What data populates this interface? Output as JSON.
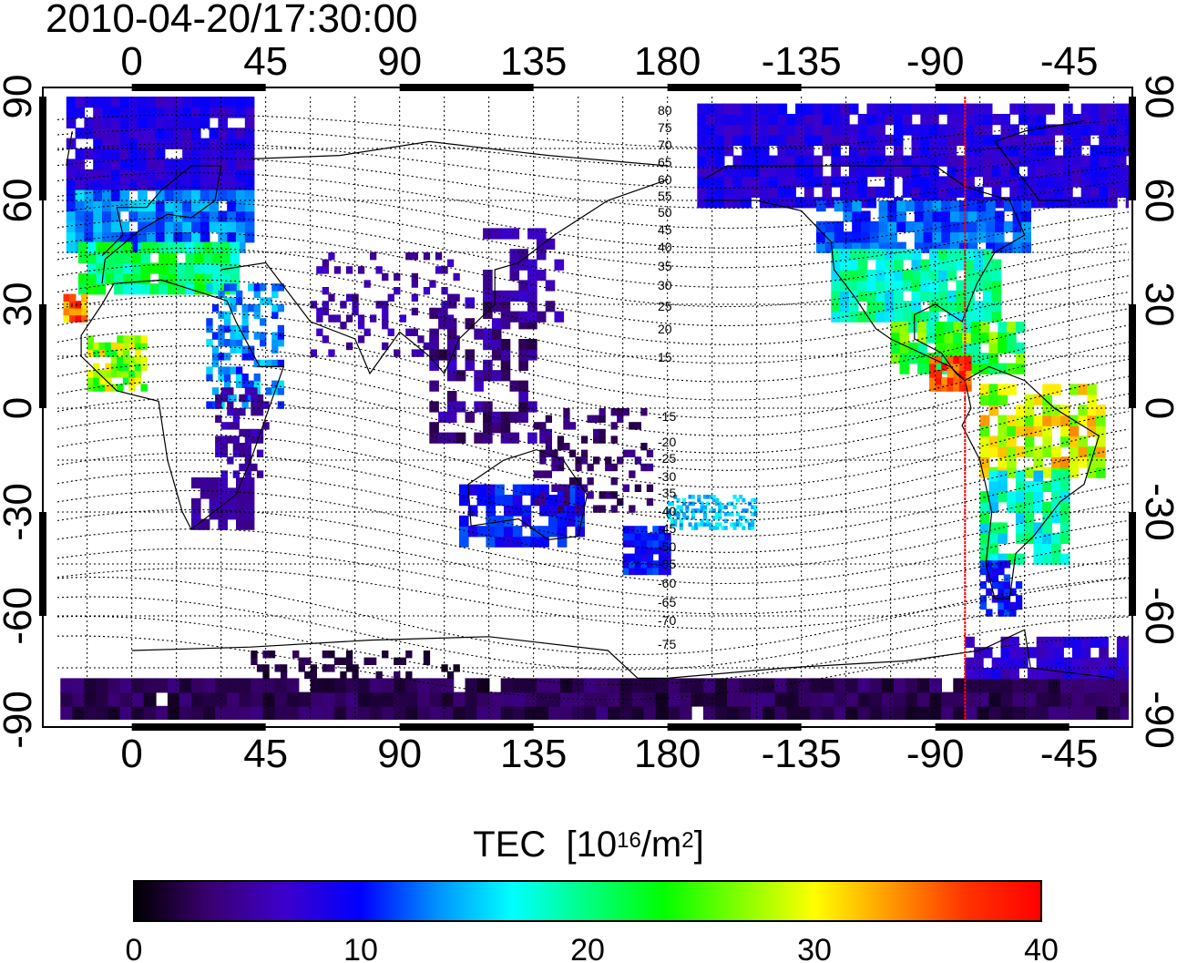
{
  "title": "2010-04-20/17:30:00",
  "map": {
    "top_tick_labels": [
      "0",
      "45",
      "90",
      "135",
      "180",
      "-135",
      "-90",
      "-45"
    ],
    "bottom_tick_labels": [
      "0",
      "45",
      "90",
      "135",
      "180",
      "-135",
      "-90",
      "-45"
    ],
    "left_tick_labels": [
      "90",
      "60",
      "30",
      "0",
      "-30",
      "-60",
      "-90"
    ],
    "right_tick_labels": [
      "90",
      "60",
      "30",
      "0",
      "-30",
      "-60",
      "-90"
    ],
    "contour_labels": [
      "80",
      "75",
      "70",
      "65",
      "60",
      "55",
      "50",
      "45",
      "40",
      "35",
      "30",
      "25",
      "20",
      "15",
      "-15",
      "-20",
      "-25",
      "-30",
      "-35",
      "-40",
      "-45",
      "-50",
      "-55",
      "-60",
      "-65",
      "-70",
      "-75"
    ],
    "marker_longitude": -80,
    "marker_color": "#ff0000",
    "land_outline_color": "#000000"
  },
  "colorbar": {
    "title": "TEC",
    "unit_prefix": "[10",
    "unit_exp": "16",
    "unit_mid": "/m",
    "unit_exp2": "2",
    "unit_suffix": "]",
    "tick_labels": [
      "0",
      "10",
      "20",
      "30",
      "40"
    ],
    "min": 0,
    "max": 40,
    "colors": [
      "#000000",
      "#3a0070",
      "#3c00cc",
      "#0000ff",
      "#0090ff",
      "#00ffff",
      "#00ff80",
      "#00ff00",
      "#80ff00",
      "#ffff00",
      "#ff9900",
      "#ff3300",
      "#ff0000"
    ]
  }
}
